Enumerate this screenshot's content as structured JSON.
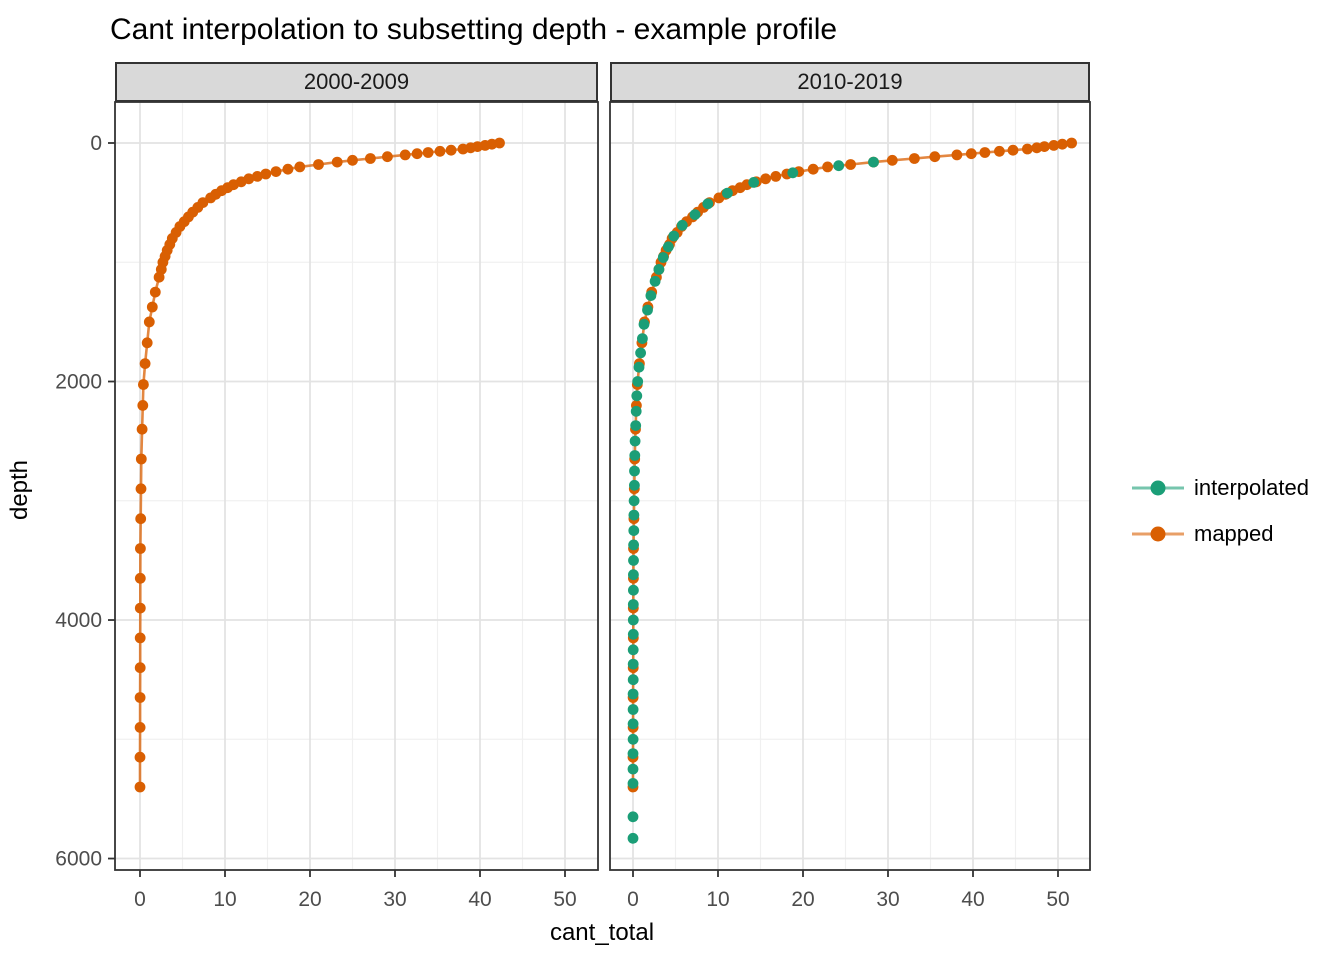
{
  "title": "Cant interpolation to subsetting depth - example profile",
  "axes": {
    "x": {
      "label": "cant_total",
      "ticks": [
        0,
        10,
        20,
        30,
        40,
        50
      ],
      "minor_ticks": [
        5,
        15,
        25,
        35,
        45
      ],
      "domain": [
        -2.9,
        53.9
      ]
    },
    "y": {
      "label": "depth",
      "ticks": [
        0,
        2000,
        4000,
        6000
      ],
      "minor_ticks": [
        1000,
        3000,
        5000
      ],
      "domain": [
        -280,
        6090
      ],
      "reversed": true
    }
  },
  "legend": {
    "items": [
      {
        "label": "interpolated",
        "color": "#1B9E77"
      },
      {
        "label": "mapped",
        "color": "#D95F02"
      }
    ]
  },
  "style": {
    "strip_fill": "#D9D9D9",
    "strip_border": "#333333",
    "panel_border": "#333333",
    "grid_major": "#E3E3E3",
    "grid_minor": "#F0F0F0",
    "tick_color": "#333333",
    "axis_text_color": "#4D4D4D",
    "interpolated_color": "#1B9E77",
    "mapped_color": "#D95F02"
  },
  "chart_data": [
    {
      "type": "scatter",
      "facet_label": "2000-2009",
      "xlabel": "cant_total",
      "ylabel": "depth",
      "xlim": [
        -2.9,
        53.9
      ],
      "ylim": [
        6090,
        -280
      ],
      "series": [
        {
          "name": "mapped",
          "color": "#D95F02",
          "line": true,
          "depth": [
            0,
            10,
            20,
            30,
            40,
            50,
            60,
            70,
            80,
            90,
            100,
            115,
            130,
            145,
            160,
            180,
            200,
            220,
            240,
            260,
            280,
            300,
            325,
            350,
            375,
            400,
            430,
            460,
            500,
            540,
            580,
            620,
            660,
            700,
            750,
            800,
            850,
            900,
            950,
            1000,
            1060,
            1125,
            1250,
            1375,
            1500,
            1675,
            1850,
            2025,
            2200,
            2400,
            2650,
            2900,
            3150,
            3400,
            3650,
            3900,
            4150,
            4400,
            4650,
            4900,
            5150,
            5400
          ],
          "cant": [
            42.3,
            41.4,
            40.6,
            39.7,
            38.9,
            38.0,
            36.6,
            35.3,
            33.9,
            32.6,
            31.2,
            29.1,
            27.1,
            25.0,
            23.2,
            21.0,
            18.8,
            17.4,
            16.0,
            14.8,
            13.8,
            12.8,
            11.9,
            11.0,
            10.3,
            9.6,
            8.9,
            8.3,
            7.4,
            6.8,
            6.2,
            5.7,
            5.2,
            4.7,
            4.25,
            3.8,
            3.5,
            3.2,
            2.95,
            2.7,
            2.5,
            2.25,
            1.8,
            1.45,
            1.1,
            0.85,
            0.6,
            0.4,
            0.33,
            0.25,
            0.15,
            0.12,
            0.08,
            0.05,
            0.04,
            0.03,
            0.02,
            0.02,
            0.01,
            0.01,
            0.0,
            0.0
          ]
        }
      ]
    },
    {
      "type": "scatter",
      "facet_label": "2010-2019",
      "xlabel": "cant_total",
      "ylabel": "depth",
      "xlim": [
        -2.9,
        53.9
      ],
      "ylim": [
        6090,
        -280
      ],
      "series": [
        {
          "name": "mapped",
          "color": "#D95F02",
          "line": true,
          "depth": [
            0,
            10,
            20,
            30,
            40,
            50,
            60,
            70,
            80,
            90,
            100,
            115,
            130,
            145,
            160,
            180,
            200,
            220,
            240,
            260,
            280,
            300,
            325,
            350,
            375,
            400,
            430,
            460,
            500,
            540,
            580,
            620,
            660,
            700,
            750,
            800,
            850,
            900,
            950,
            1000,
            1060,
            1125,
            1250,
            1375,
            1500,
            1675,
            1850,
            2025,
            2200,
            2400,
            2650,
            2900,
            3150,
            3400,
            3650,
            3900,
            4150,
            4400,
            4650,
            4900,
            5150,
            5400
          ],
          "cant": [
            51.6,
            50.5,
            49.5,
            48.4,
            47.5,
            46.4,
            44.7,
            43.1,
            41.4,
            39.8,
            38.1,
            35.5,
            33.1,
            30.5,
            28.3,
            25.6,
            22.9,
            21.2,
            19.5,
            18.1,
            16.8,
            15.6,
            14.5,
            13.4,
            12.6,
            11.7,
            10.9,
            10.1,
            9.0,
            8.3,
            7.6,
            7.0,
            6.3,
            5.7,
            5.2,
            4.6,
            4.3,
            3.9,
            3.6,
            3.3,
            3.05,
            2.75,
            2.2,
            1.75,
            1.35,
            1.05,
            0.75,
            0.5,
            0.4,
            0.3,
            0.2,
            0.15,
            0.1,
            0.06,
            0.05,
            0.04,
            0.03,
            0.02,
            0.01,
            0.01,
            0.0,
            0.0
          ]
        },
        {
          "name": "interpolated",
          "color": "#1B9E77",
          "line": false,
          "depth": [
            160,
            190,
            250,
            330,
            420,
            510,
            600,
            690,
            780,
            870,
            960,
            1060,
            1160,
            1280,
            1400,
            1520,
            1640,
            1760,
            1880,
            2000,
            2120,
            2250,
            2370,
            2500,
            2620,
            2750,
            2870,
            3000,
            3120,
            3250,
            3370,
            3500,
            3620,
            3750,
            3870,
            4000,
            4120,
            4250,
            4370,
            4500,
            4620,
            4750,
            4870,
            5000,
            5120,
            5250,
            5370,
            5650,
            5830
          ],
          "cant": [
            28.3,
            24.2,
            18.8,
            14.2,
            11.1,
            8.8,
            7.3,
            5.8,
            4.8,
            4.15,
            3.55,
            3.05,
            2.6,
            2.1,
            1.7,
            1.3,
            1.1,
            0.9,
            0.7,
            0.55,
            0.45,
            0.38,
            0.32,
            0.25,
            0.21,
            0.18,
            0.16,
            0.13,
            0.11,
            0.09,
            0.07,
            0.06,
            0.05,
            0.045,
            0.04,
            0.035,
            0.03,
            0.025,
            0.02,
            0.02,
            0.015,
            0.01,
            0.01,
            0.01,
            0.005,
            0.0,
            0.0,
            0.0,
            0.0
          ]
        }
      ]
    }
  ]
}
